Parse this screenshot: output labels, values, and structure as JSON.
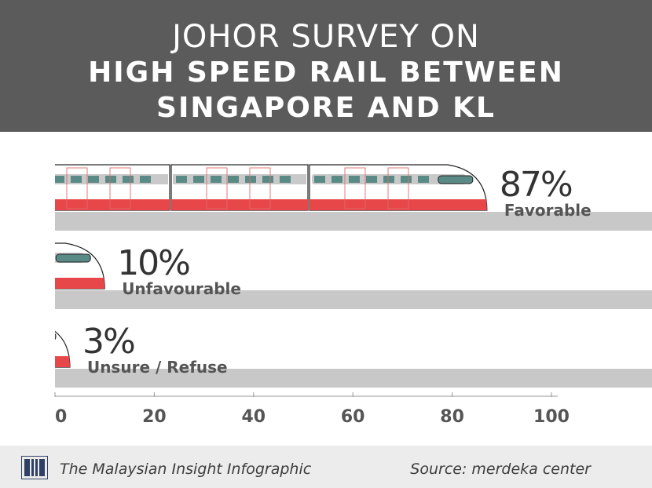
{
  "header": {
    "line1": "JOHOR SURVEY ON",
    "line2": "HIGH SPEED RAIL BETWEEN",
    "line3": "SINGAPORE AND KL"
  },
  "footer": {
    "left": "The Malaysian Insight Infographic",
    "right": "Source: merdeka center",
    "logo": "tmi-logo-icon"
  },
  "colors": {
    "header_bg": "#5b5b5b",
    "track": "#c8c8c8",
    "train_red": "#e8474a",
    "train_window": "#5a8a86",
    "footer_bg": "#ececec"
  },
  "chart_data": {
    "type": "bar",
    "orientation": "horizontal",
    "categories": [
      "Favorable",
      "Unfavourable",
      "Unsure / Refuse"
    ],
    "values": [
      87,
      10,
      3
    ],
    "value_labels": [
      "87%",
      "10%",
      "3%"
    ],
    "xlim": [
      0,
      100
    ],
    "xticks": [
      0,
      20,
      40,
      60,
      80,
      100
    ],
    "grid": false,
    "legend": "none"
  }
}
